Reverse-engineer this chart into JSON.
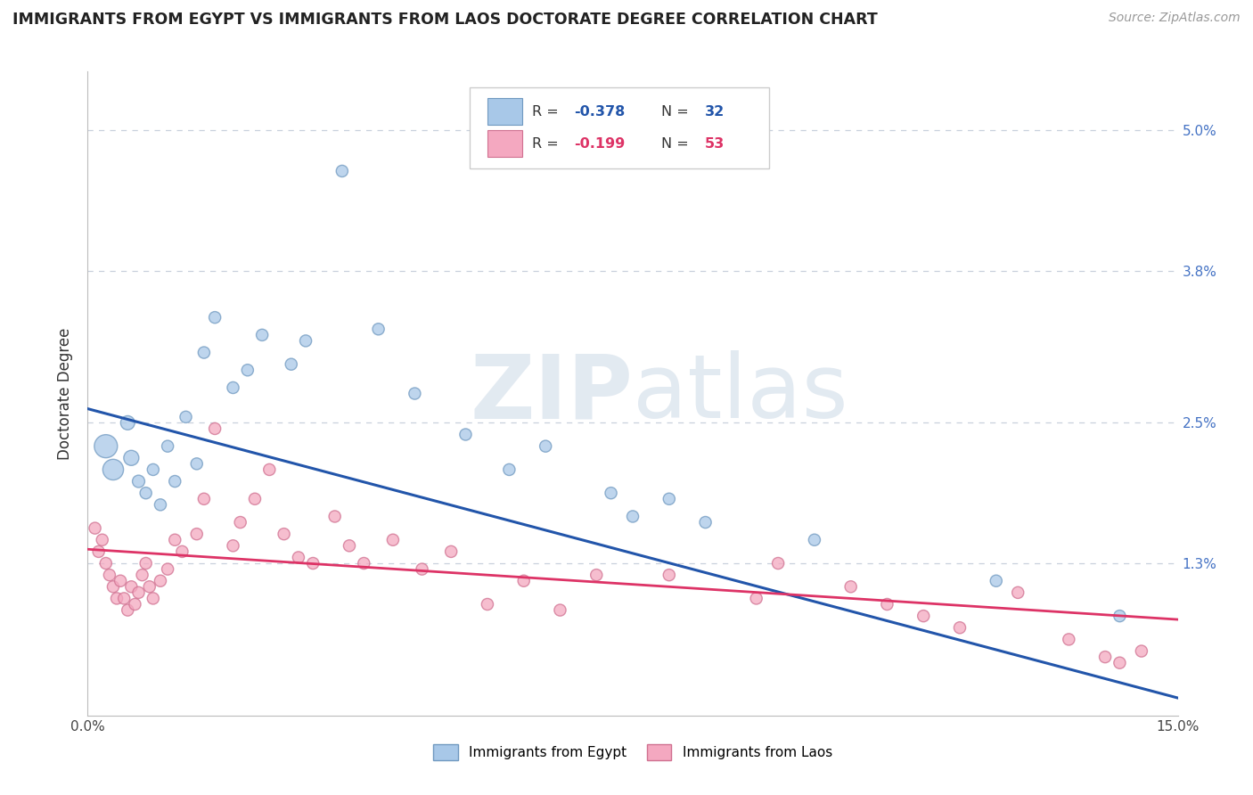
{
  "title": "IMMIGRANTS FROM EGYPT VS IMMIGRANTS FROM LAOS DOCTORATE DEGREE CORRELATION CHART",
  "source": "Source: ZipAtlas.com",
  "ylabel": "Doctorate Degree",
  "right_yticks": [
    1.3,
    2.5,
    3.8,
    5.0
  ],
  "right_yticklabels": [
    "1.3%",
    "2.5%",
    "3.8%",
    "5.0%"
  ],
  "xlim": [
    0.0,
    15.0
  ],
  "ylim": [
    0.0,
    5.5
  ],
  "egypt_R": -0.378,
  "egypt_N": 32,
  "laos_R": -0.199,
  "laos_N": 53,
  "egypt_color": "#a8c8e8",
  "laos_color": "#f4a8c0",
  "egypt_edge_color": "#7099c0",
  "laos_edge_color": "#d07090",
  "egypt_line_color": "#2255aa",
  "laos_line_color": "#dd3366",
  "egypt_line_start_y": 2.62,
  "egypt_line_end_y": 0.15,
  "laos_line_start_y": 1.42,
  "laos_line_end_y": 0.82,
  "watermark_color": "#d0dce8",
  "grid_color": "#c8d0dc",
  "egypt_x": [
    0.25,
    0.35,
    0.55,
    0.6,
    0.7,
    0.8,
    0.9,
    1.0,
    1.1,
    1.2,
    1.35,
    1.5,
    1.6,
    1.75,
    2.0,
    2.2,
    2.4,
    2.8,
    3.0,
    3.5,
    4.0,
    4.5,
    5.2,
    5.8,
    6.3,
    7.2,
    7.5,
    8.0,
    8.5,
    10.0,
    12.5,
    14.2
  ],
  "egypt_y": [
    2.3,
    2.1,
    2.5,
    2.2,
    2.0,
    1.9,
    2.1,
    1.8,
    2.3,
    2.0,
    2.55,
    2.15,
    3.1,
    3.4,
    2.8,
    2.95,
    3.25,
    3.0,
    3.2,
    4.65,
    3.3,
    2.75,
    2.4,
    2.1,
    2.3,
    1.9,
    1.7,
    1.85,
    1.65,
    1.5,
    1.15,
    0.85
  ],
  "egypt_sizes": [
    350,
    280,
    130,
    150,
    100,
    90,
    90,
    90,
    90,
    90,
    90,
    90,
    90,
    90,
    90,
    90,
    90,
    90,
    90,
    90,
    90,
    90,
    90,
    90,
    90,
    90,
    90,
    90,
    90,
    90,
    90,
    90
  ],
  "laos_x": [
    0.1,
    0.15,
    0.2,
    0.25,
    0.3,
    0.35,
    0.4,
    0.45,
    0.5,
    0.55,
    0.6,
    0.65,
    0.7,
    0.75,
    0.8,
    0.85,
    0.9,
    1.0,
    1.1,
    1.2,
    1.3,
    1.5,
    1.6,
    1.75,
    2.0,
    2.1,
    2.3,
    2.5,
    2.7,
    2.9,
    3.1,
    3.4,
    3.6,
    3.8,
    4.2,
    4.6,
    5.0,
    5.5,
    6.0,
    6.5,
    7.0,
    8.0,
    9.2,
    9.5,
    10.5,
    11.0,
    11.5,
    12.0,
    12.8,
    13.5,
    14.0,
    14.2,
    14.5
  ],
  "laos_y": [
    1.6,
    1.4,
    1.5,
    1.3,
    1.2,
    1.1,
    1.0,
    1.15,
    1.0,
    0.9,
    1.1,
    0.95,
    1.05,
    1.2,
    1.3,
    1.1,
    1.0,
    1.15,
    1.25,
    1.5,
    1.4,
    1.55,
    1.85,
    2.45,
    1.45,
    1.65,
    1.85,
    2.1,
    1.55,
    1.35,
    1.3,
    1.7,
    1.45,
    1.3,
    1.5,
    1.25,
    1.4,
    0.95,
    1.15,
    0.9,
    1.2,
    1.2,
    1.0,
    1.3,
    1.1,
    0.95,
    0.85,
    0.75,
    1.05,
    0.65,
    0.5,
    0.45,
    0.55
  ],
  "laos_sizes": [
    90,
    90,
    90,
    90,
    90,
    90,
    90,
    90,
    90,
    90,
    90,
    90,
    90,
    90,
    90,
    90,
    90,
    90,
    90,
    90,
    90,
    90,
    90,
    90,
    90,
    90,
    90,
    90,
    90,
    90,
    90,
    90,
    90,
    90,
    90,
    90,
    90,
    90,
    90,
    90,
    90,
    90,
    90,
    90,
    90,
    90,
    90,
    90,
    90,
    90,
    90,
    90,
    90
  ]
}
